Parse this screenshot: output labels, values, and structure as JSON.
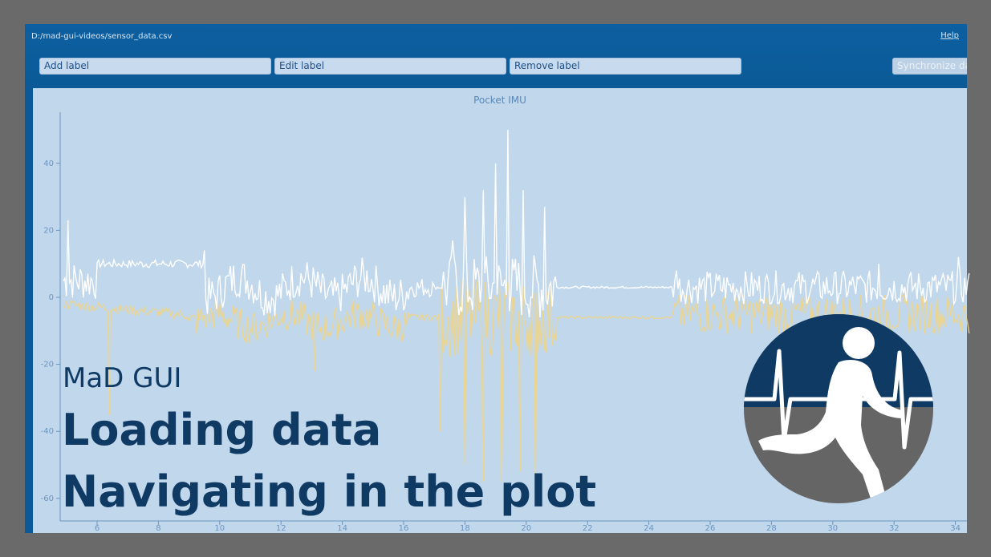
{
  "window": {
    "file_path": "D:/mad-gui-videos/sensor_data.csv",
    "help_label": "Help"
  },
  "toolbar": {
    "add_label": "Add label",
    "edit_label": "Edit label",
    "remove_label": "Remove label",
    "synchronize_label": "Synchronize dat"
  },
  "plot": {
    "title": "Pocket IMU",
    "x_ticks": [
      "6",
      "8",
      "10",
      "12",
      "14",
      "16",
      "18",
      "20",
      "22",
      "24",
      "26",
      "28",
      "30",
      "32",
      "34"
    ],
    "y_ticks": [
      "40",
      "20",
      "0",
      "-20",
      "-40",
      "-60"
    ],
    "colors": {
      "series_white": "#ffffff",
      "series_yellow": "#f0d58a",
      "axis": "#6c95c0"
    }
  },
  "overlay": {
    "subtitle": "MaD GUI",
    "title_line1": "Loading data",
    "title_line2": "Navigating in the plot"
  },
  "logo": {
    "icon": "runner-heartbeat-logo",
    "colors": {
      "top": "#0f3a64",
      "bottom": "#666566",
      "figure": "#ffffff"
    }
  }
}
